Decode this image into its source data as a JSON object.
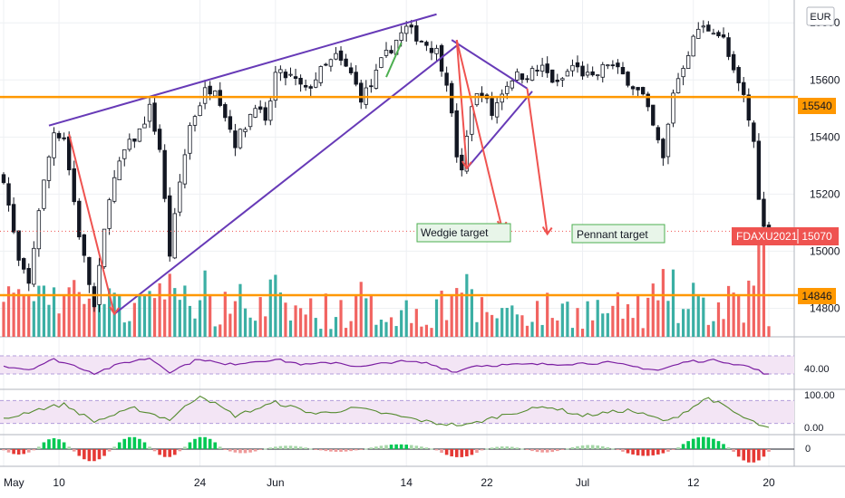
{
  "chart_data": {
    "type": "candlestick",
    "currency": "EUR",
    "price_axis": {
      "ticks": [
        14800,
        15000,
        15200,
        15400,
        15600,
        15800
      ],
      "range": [
        14700,
        15880
      ]
    },
    "x_axis": {
      "ticks": [
        {
          "label": "May",
          "i": 0
        },
        {
          "label": "10",
          "i": 11
        },
        {
          "label": "24",
          "i": 39
        },
        {
          "label": "Jun",
          "i": 54
        },
        {
          "label": "14",
          "i": 80
        },
        {
          "label": "22",
          "i": 96
        },
        {
          "label": "Jul",
          "i": 115
        },
        {
          "label": "12",
          "i": 137
        },
        {
          "label": "20",
          "i": 152
        }
      ]
    },
    "levels": [
      {
        "label": "15540",
        "value": 15540,
        "color": "#ff9800"
      },
      {
        "label": "14846",
        "value": 14846,
        "color": "#ff9800"
      }
    ],
    "last_price": {
      "symbol": "FDAXU2021",
      "value": "15070",
      "numeric": 15070,
      "color": "#ef5350"
    },
    "annotations": [
      {
        "text": "Wedgie target"
      },
      {
        "text": "Pennant target"
      }
    ],
    "anchors": [
      {
        "i": 0,
        "v": 15260
      },
      {
        "i": 3,
        "v": 14960
      },
      {
        "i": 5,
        "v": 14880
      },
      {
        "i": 7,
        "v": 15150
      },
      {
        "i": 10,
        "v": 15420
      },
      {
        "i": 12,
        "v": 15400
      },
      {
        "i": 15,
        "v": 15060
      },
      {
        "i": 18,
        "v": 14800
      },
      {
        "i": 21,
        "v": 15200
      },
      {
        "i": 24,
        "v": 15350
      },
      {
        "i": 27,
        "v": 15420
      },
      {
        "i": 29,
        "v": 15500
      },
      {
        "i": 31,
        "v": 15360
      },
      {
        "i": 33,
        "v": 14990
      },
      {
        "i": 35,
        "v": 15240
      },
      {
        "i": 37,
        "v": 15440
      },
      {
        "i": 40,
        "v": 15560
      },
      {
        "i": 42,
        "v": 15580
      },
      {
        "i": 44,
        "v": 15480
      },
      {
        "i": 46,
        "v": 15380
      },
      {
        "i": 48,
        "v": 15440
      },
      {
        "i": 50,
        "v": 15520
      },
      {
        "i": 52,
        "v": 15440
      },
      {
        "i": 54,
        "v": 15620
      },
      {
        "i": 57,
        "v": 15610
      },
      {
        "i": 60,
        "v": 15560
      },
      {
        "i": 63,
        "v": 15630
      },
      {
        "i": 66,
        "v": 15680
      },
      {
        "i": 69,
        "v": 15620
      },
      {
        "i": 71,
        "v": 15540
      },
      {
        "i": 73,
        "v": 15580
      },
      {
        "i": 75,
        "v": 15660
      },
      {
        "i": 78,
        "v": 15740
      },
      {
        "i": 80,
        "v": 15780
      },
      {
        "i": 83,
        "v": 15740
      },
      {
        "i": 86,
        "v": 15700
      },
      {
        "i": 88,
        "v": 15600
      },
      {
        "i": 90,
        "v": 15340
      },
      {
        "i": 91,
        "v": 15270
      },
      {
        "i": 93,
        "v": 15520
      },
      {
        "i": 95,
        "v": 15560
      },
      {
        "i": 97,
        "v": 15480
      },
      {
        "i": 99,
        "v": 15560
      },
      {
        "i": 101,
        "v": 15610
      },
      {
        "i": 104,
        "v": 15620
      },
      {
        "i": 107,
        "v": 15640
      },
      {
        "i": 110,
        "v": 15580
      },
      {
        "i": 113,
        "v": 15650
      },
      {
        "i": 117,
        "v": 15600
      },
      {
        "i": 120,
        "v": 15660
      },
      {
        "i": 124,
        "v": 15600
      },
      {
        "i": 127,
        "v": 15540
      },
      {
        "i": 130,
        "v": 15380
      },
      {
        "i": 131,
        "v": 15320
      },
      {
        "i": 133,
        "v": 15560
      },
      {
        "i": 136,
        "v": 15700
      },
      {
        "i": 138,
        "v": 15780
      },
      {
        "i": 141,
        "v": 15780
      },
      {
        "i": 143,
        "v": 15740
      },
      {
        "i": 145,
        "v": 15620
      },
      {
        "i": 147,
        "v": 15540
      },
      {
        "i": 149,
        "v": 15380
      },
      {
        "i": 150,
        "v": 15200
      },
      {
        "i": 151,
        "v": 15080
      },
      {
        "i": 152,
        "v": 15070
      }
    ],
    "candle_count": 153,
    "volume_pane": {
      "type": "bar",
      "series": "volume"
    },
    "oscillator_1": {
      "label": "40.00",
      "band": [
        30,
        70
      ],
      "anchors": [
        {
          "i": 0,
          "v": 48
        },
        {
          "i": 5,
          "v": 40
        },
        {
          "i": 10,
          "v": 62
        },
        {
          "i": 15,
          "v": 45
        },
        {
          "i": 18,
          "v": 32
        },
        {
          "i": 24,
          "v": 55
        },
        {
          "i": 29,
          "v": 65
        },
        {
          "i": 33,
          "v": 35
        },
        {
          "i": 39,
          "v": 64
        },
        {
          "i": 44,
          "v": 50
        },
        {
          "i": 50,
          "v": 58
        },
        {
          "i": 54,
          "v": 62
        },
        {
          "i": 60,
          "v": 50
        },
        {
          "i": 66,
          "v": 56
        },
        {
          "i": 71,
          "v": 45
        },
        {
          "i": 78,
          "v": 58
        },
        {
          "i": 84,
          "v": 54
        },
        {
          "i": 90,
          "v": 34
        },
        {
          "i": 93,
          "v": 48
        },
        {
          "i": 100,
          "v": 50
        },
        {
          "i": 110,
          "v": 52
        },
        {
          "i": 120,
          "v": 55
        },
        {
          "i": 130,
          "v": 38
        },
        {
          "i": 136,
          "v": 58
        },
        {
          "i": 142,
          "v": 60
        },
        {
          "i": 148,
          "v": 46
        },
        {
          "i": 152,
          "v": 28
        }
      ]
    },
    "oscillator_2": {
      "labels": [
        "100.00",
        "0.00"
      ],
      "band": [
        20,
        80
      ],
      "anchors": [
        {
          "i": 0,
          "v": 30
        },
        {
          "i": 6,
          "v": 55
        },
        {
          "i": 12,
          "v": 70
        },
        {
          "i": 18,
          "v": 25
        },
        {
          "i": 26,
          "v": 60
        },
        {
          "i": 33,
          "v": 30
        },
        {
          "i": 39,
          "v": 95
        },
        {
          "i": 46,
          "v": 40
        },
        {
          "i": 54,
          "v": 75
        },
        {
          "i": 62,
          "v": 45
        },
        {
          "i": 70,
          "v": 60
        },
        {
          "i": 78,
          "v": 40
        },
        {
          "i": 86,
          "v": 20
        },
        {
          "i": 92,
          "v": 15
        },
        {
          "i": 100,
          "v": 45
        },
        {
          "i": 108,
          "v": 65
        },
        {
          "i": 115,
          "v": 40
        },
        {
          "i": 124,
          "v": 55
        },
        {
          "i": 132,
          "v": 25
        },
        {
          "i": 140,
          "v": 88
        },
        {
          "i": 147,
          "v": 35
        },
        {
          "i": 152,
          "v": 5
        }
      ]
    },
    "oscillator_3": {
      "label": "0",
      "waves": [
        {
          "i0": 0,
          "i1": 7,
          "amp": -0.4
        },
        {
          "i0": 7,
          "i1": 14,
          "amp": 0.8
        },
        {
          "i0": 14,
          "i1": 22,
          "amp": -0.9
        },
        {
          "i0": 22,
          "i1": 30,
          "amp": 0.9
        },
        {
          "i0": 30,
          "i1": 36,
          "amp": -0.6
        },
        {
          "i0": 36,
          "i1": 44,
          "amp": 0.9
        },
        {
          "i0": 44,
          "i1": 52,
          "amp": -0.3
        },
        {
          "i0": 52,
          "i1": 62,
          "amp": 0.25
        },
        {
          "i0": 62,
          "i1": 72,
          "amp": -0.2
        },
        {
          "i0": 72,
          "i1": 86,
          "amp": 0.35
        },
        {
          "i0": 86,
          "i1": 96,
          "amp": -0.6
        },
        {
          "i0": 96,
          "i1": 104,
          "amp": 0.2
        },
        {
          "i0": 104,
          "i1": 112,
          "amp": -0.25
        },
        {
          "i0": 112,
          "i1": 122,
          "amp": 0.3
        },
        {
          "i0": 122,
          "i1": 134,
          "amp": -0.5
        },
        {
          "i0": 134,
          "i1": 145,
          "amp": 0.9
        },
        {
          "i0": 145,
          "i1": 153,
          "amp": -1.0
        }
      ]
    }
  }
}
